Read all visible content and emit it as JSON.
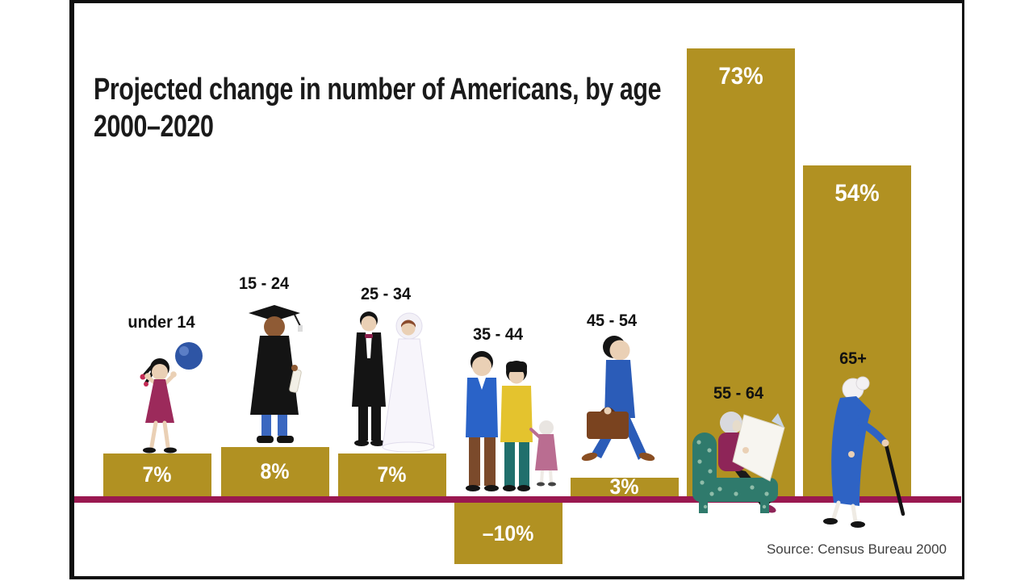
{
  "title": {
    "line1": "Projected change in number of Americans, by age",
    "line2": "2000–2020"
  },
  "source_note": "Source: Census Bureau 2000",
  "colors": {
    "bar_gold": "#B19122",
    "baseline_maroon": "#9A1850",
    "title_text": "#1A1A1A",
    "percent_text": "#FFFFFF",
    "age_label_text": "#111111",
    "source_text": "#3F3F3F",
    "frame_border": "#0F0F0F",
    "background": "#FFFFFF"
  },
  "chart_data": {
    "type": "bar",
    "title": "Projected change in number of Americans, by age 2000–2020",
    "categories": [
      "under 14",
      "15 - 24",
      "25 - 34",
      "35 - 44",
      "45 - 54",
      "55 - 64",
      "65+"
    ],
    "values": [
      7,
      8,
      7,
      -10,
      3,
      73,
      54
    ],
    "value_labels": [
      "7%",
      "8%",
      "7%",
      "–10%",
      "3%",
      "73%",
      "54%"
    ],
    "unit": "percent change",
    "baseline_value": 0,
    "ylim": [
      -10,
      73
    ],
    "grid": false,
    "legend": false,
    "source": "Source: Census Bureau 2000",
    "illustrations": [
      "girl playing with a ball",
      "graduate in cap and gown",
      "bride and groom wedding couple",
      "family with young child",
      "businessman walking with briefcase",
      "person reading newspaper in armchair",
      "elderly woman walking with cane"
    ]
  }
}
